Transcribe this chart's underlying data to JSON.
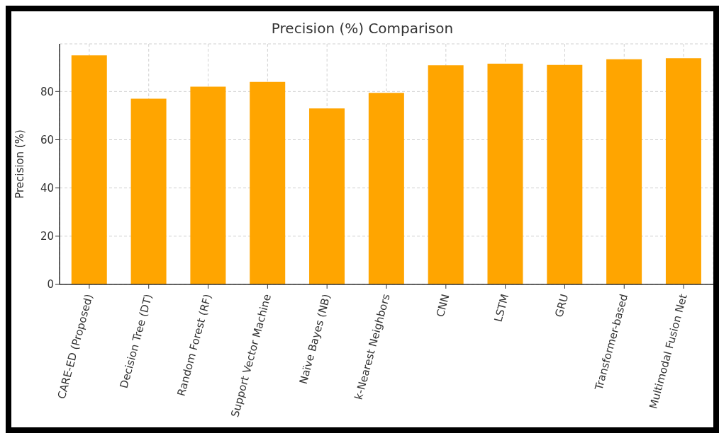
{
  "chart_data": {
    "type": "bar",
    "title": "Precision (%) Comparison",
    "ylabel": "Precision (%)",
    "categories": [
      "CARE-ED (Proposed)",
      "Decision Tree (DT)",
      "Random Forest (RF)",
      "Support Vector Machine",
      "Naïve Bayes (NB)",
      "k-Nearest Neighbors",
      "CNN",
      "LSTM",
      "GRU",
      "Transformer-based",
      "Multimodal Fusion Net"
    ],
    "values": [
      95,
      77,
      82,
      84,
      73,
      79.4,
      90.9,
      91.5,
      91,
      93.4,
      93.8
    ],
    "color": "#ffa500",
    "ylim": [
      0,
      99.75
    ],
    "yticks": [
      0,
      20,
      40,
      60,
      80
    ],
    "grid": true,
    "legend": false
  }
}
